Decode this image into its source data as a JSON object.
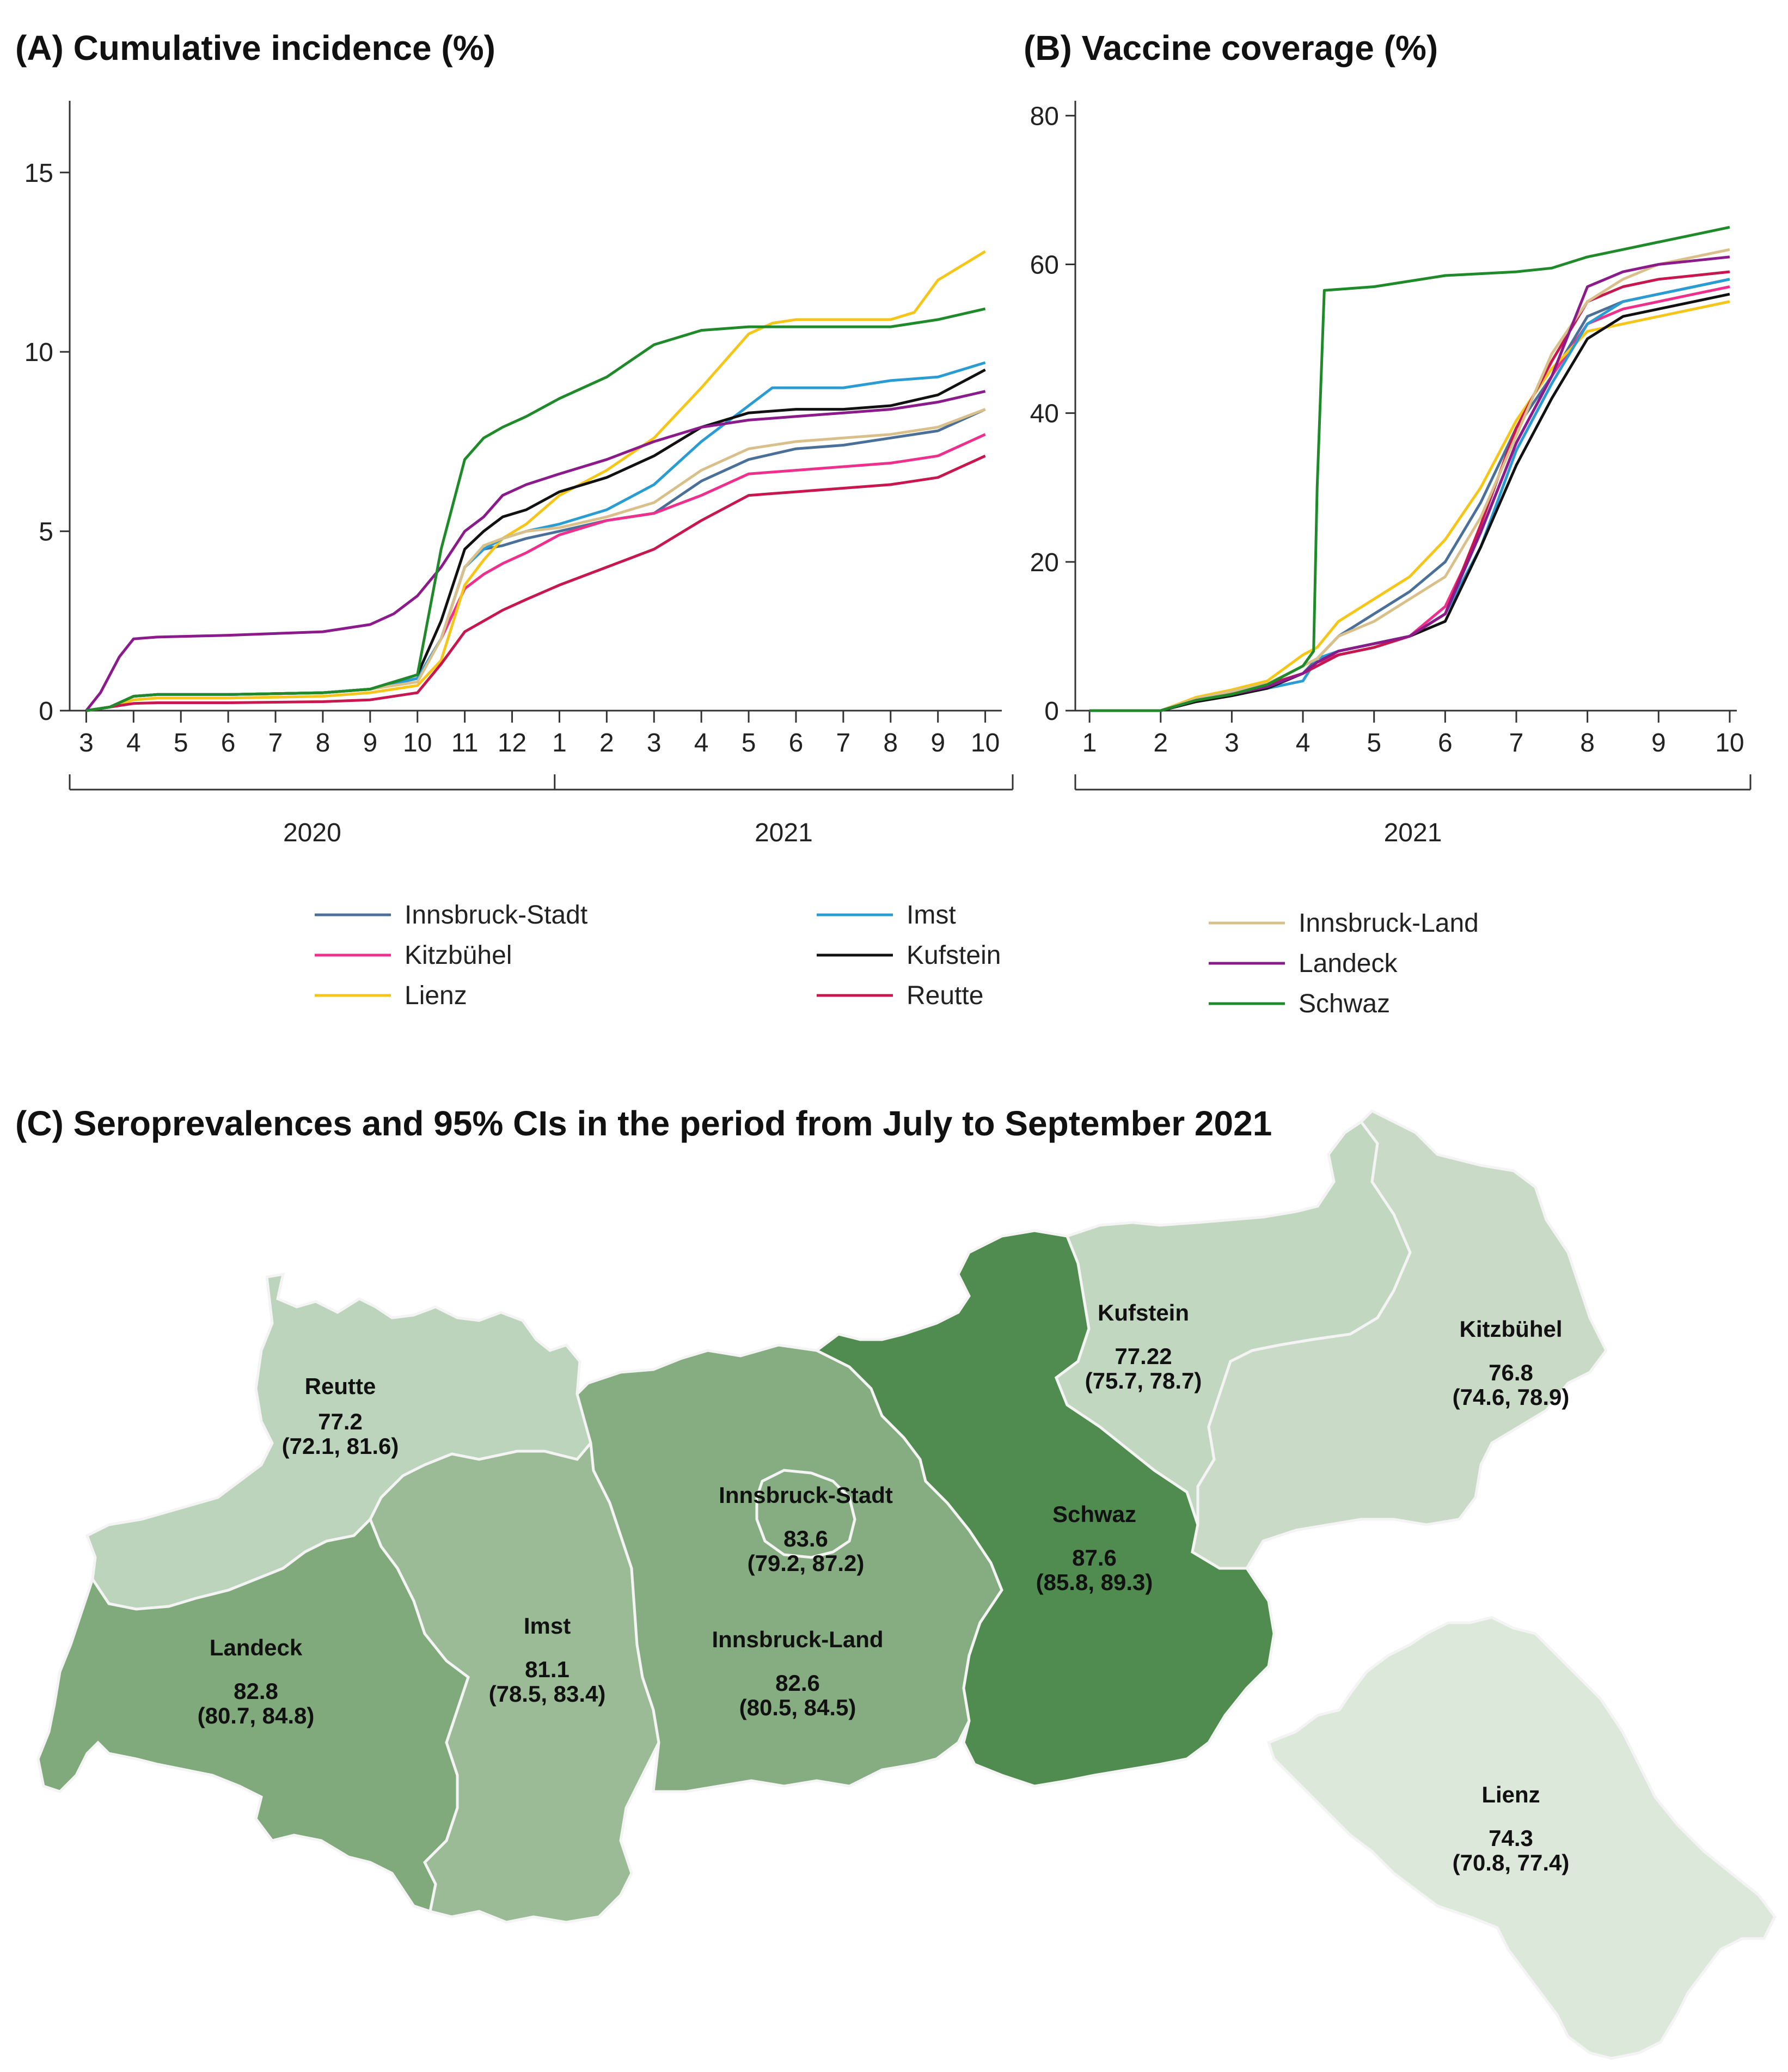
{
  "chart_data": [
    {
      "type": "line",
      "id": "A",
      "title": "(A) Cumulative incidence (%)",
      "ylim": [
        0,
        17
      ],
      "yticks": [
        0,
        5,
        10,
        15
      ],
      "xticks": [
        "3",
        "4",
        "5",
        "6",
        "7",
        "8",
        "9",
        "10",
        "11",
        "12",
        "1",
        "2",
        "3",
        "4",
        "5",
        "6",
        "7",
        "8",
        "9",
        "10"
      ],
      "year_labels": [
        "2020",
        "2021"
      ],
      "x_month_index_range": [
        0,
        19.3
      ],
      "series": [
        {
          "name": "Innsbruck-Stadt",
          "color": "#4a6f99",
          "x": [
            0,
            0.5,
            1,
            1.5,
            3,
            5,
            6,
            7,
            7.5,
            8,
            8.4,
            8.8,
            9.3,
            10,
            11,
            12,
            13,
            14,
            15,
            16,
            17,
            18,
            19
          ],
          "values": [
            0,
            0.1,
            0.4,
            0.45,
            0.45,
            0.5,
            0.6,
            0.9,
            2,
            4,
            4.5,
            4.6,
            4.8,
            5,
            5.3,
            5.5,
            6.4,
            7,
            7.3,
            7.4,
            7.6,
            7.8,
            8.4
          ]
        },
        {
          "name": "Kitzbühel",
          "color": "#ef2f8c",
          "x": [
            0,
            0.5,
            1,
            1.5,
            3,
            5,
            6,
            7,
            7.5,
            8,
            8.4,
            8.8,
            9.3,
            10,
            11,
            12,
            13,
            14,
            15,
            16,
            17,
            18,
            19
          ],
          "values": [
            0,
            0.1,
            0.4,
            0.45,
            0.45,
            0.5,
            0.6,
            0.9,
            2,
            3.4,
            3.8,
            4.1,
            4.4,
            4.9,
            5.3,
            5.5,
            6,
            6.6,
            6.7,
            6.8,
            6.9,
            7.1,
            7.7
          ]
        },
        {
          "name": "Lienz",
          "color": "#f5c518",
          "x": [
            0,
            0.5,
            1,
            1.5,
            3,
            5,
            6,
            7,
            7.5,
            8,
            8.4,
            8.8,
            9.3,
            10,
            11,
            12,
            13,
            14,
            14.5,
            15,
            16,
            17,
            17.5,
            18,
            19
          ],
          "values": [
            0,
            0.1,
            0.3,
            0.35,
            0.35,
            0.4,
            0.5,
            0.7,
            1.4,
            3.5,
            4.2,
            4.8,
            5.2,
            6,
            6.7,
            7.6,
            9,
            10.5,
            10.8,
            10.9,
            10.9,
            10.9,
            11.1,
            12,
            12.8
          ]
        },
        {
          "name": "Imst",
          "color": "#2a9cd4",
          "x": [
            0,
            0.5,
            1,
            1.5,
            3,
            5,
            6,
            7,
            7.5,
            8,
            8.4,
            8.8,
            9.3,
            10,
            11,
            12,
            13,
            14,
            14.5,
            15,
            16,
            17,
            18,
            19
          ],
          "values": [
            0,
            0.1,
            0.4,
            0.45,
            0.45,
            0.5,
            0.6,
            0.9,
            2,
            4,
            4.5,
            4.8,
            5,
            5.2,
            5.6,
            6.3,
            7.5,
            8.5,
            9,
            9,
            9,
            9.2,
            9.3,
            9.7
          ]
        },
        {
          "name": "Kufstein",
          "color": "#111111",
          "x": [
            0,
            0.5,
            1,
            1.5,
            3,
            5,
            6,
            7,
            7.5,
            8,
            8.4,
            8.8,
            9.3,
            10,
            11,
            12,
            13,
            14,
            15,
            16,
            17,
            18,
            19
          ],
          "values": [
            0,
            0.1,
            0.4,
            0.45,
            0.45,
            0.5,
            0.6,
            1,
            2.5,
            4.5,
            5,
            5.4,
            5.6,
            6.1,
            6.5,
            7.1,
            7.9,
            8.3,
            8.4,
            8.4,
            8.5,
            8.8,
            9.5
          ]
        },
        {
          "name": "Reutte",
          "color": "#c8174e",
          "x": [
            0,
            0.5,
            1,
            1.5,
            3,
            5,
            6,
            7,
            7.5,
            8,
            8.4,
            8.8,
            9.3,
            10,
            11,
            12,
            13,
            14,
            15,
            16,
            17,
            18,
            19
          ],
          "values": [
            0,
            0.1,
            0.2,
            0.22,
            0.22,
            0.25,
            0.3,
            0.5,
            1.3,
            2.2,
            2.5,
            2.8,
            3.1,
            3.5,
            4,
            4.5,
            5.3,
            6,
            6.1,
            6.2,
            6.3,
            6.5,
            7.1
          ]
        },
        {
          "name": "Innsbruck-Land",
          "color": "#d9c08a",
          "x": [
            0,
            0.5,
            1,
            1.5,
            3,
            5,
            6,
            7,
            7.5,
            8,
            8.4,
            8.8,
            9.3,
            10,
            11,
            12,
            13,
            14,
            15,
            16,
            17,
            18,
            19
          ],
          "values": [
            0,
            0.1,
            0.4,
            0.45,
            0.45,
            0.5,
            0.6,
            0.8,
            2,
            4,
            4.6,
            4.8,
            5,
            5.1,
            5.4,
            5.8,
            6.7,
            7.3,
            7.5,
            7.6,
            7.7,
            7.9,
            8.4
          ]
        },
        {
          "name": "Landeck",
          "color": "#8b1a8b",
          "x": [
            0,
            0.3,
            0.7,
            1,
            1.5,
            3,
            5,
            6,
            6.5,
            7,
            7.5,
            8,
            8.4,
            8.8,
            9.3,
            10,
            11,
            12,
            13,
            14,
            15,
            16,
            17,
            18,
            19
          ],
          "values": [
            0,
            0.5,
            1.5,
            2,
            2.05,
            2.1,
            2.2,
            2.4,
            2.7,
            3.2,
            4,
            5,
            5.4,
            6,
            6.3,
            6.6,
            7,
            7.5,
            7.9,
            8.1,
            8.2,
            8.3,
            8.4,
            8.6,
            8.9
          ]
        },
        {
          "name": "Schwaz",
          "color": "#1f8a2a",
          "x": [
            0,
            0.5,
            1,
            1.5,
            3,
            5,
            6,
            7,
            7.5,
            8,
            8.4,
            8.8,
            9.3,
            10,
            11,
            12,
            13,
            14,
            15,
            16,
            17,
            18,
            19
          ],
          "values": [
            0,
            0.1,
            0.4,
            0.45,
            0.45,
            0.5,
            0.6,
            1,
            4.5,
            7,
            7.6,
            7.9,
            8.2,
            8.7,
            9.3,
            10.2,
            10.6,
            10.7,
            10.7,
            10.7,
            10.7,
            10.9,
            11.2
          ]
        }
      ]
    },
    {
      "type": "line",
      "id": "B",
      "title": "(B) Vaccine coverage (%)",
      "ylim": [
        0,
        82
      ],
      "yticks": [
        0,
        20,
        40,
        60,
        80
      ],
      "xticks": [
        "1",
        "2",
        "3",
        "4",
        "5",
        "6",
        "7",
        "8",
        "9",
        "10"
      ],
      "year_labels": [
        "2021"
      ],
      "series": [
        {
          "name": "Innsbruck-Stadt",
          "color": "#4a6f99",
          "x": [
            1,
            2,
            2.5,
            3,
            3.5,
            4,
            4.2,
            4.5,
            5,
            5.5,
            6,
            6.5,
            7,
            7.5,
            8,
            8.5,
            9,
            9.5,
            10
          ],
          "values": [
            0,
            0,
            1.5,
            2.5,
            3.5,
            5,
            7,
            10,
            13,
            16,
            20,
            28,
            38,
            45,
            53,
            55,
            56,
            57,
            58
          ]
        },
        {
          "name": "Kitzbühel",
          "color": "#ef2f8c",
          "x": [
            1,
            2,
            2.5,
            3,
            3.5,
            4,
            4.2,
            4.5,
            5,
            5.5,
            6,
            6.5,
            7,
            7.5,
            8,
            8.5,
            9,
            9.5,
            10
          ],
          "values": [
            0,
            0,
            1.5,
            2.5,
            3.5,
            5,
            6.5,
            7.5,
            8.5,
            10,
            14,
            24,
            36,
            45,
            52,
            54,
            55,
            56,
            57
          ]
        },
        {
          "name": "Lienz",
          "color": "#f5c518",
          "x": [
            1,
            2,
            2.5,
            3,
            3.5,
            4,
            4.2,
            4.5,
            5,
            5.5,
            6,
            6.5,
            7,
            7.5,
            8,
            8.5,
            9,
            9.5,
            10
          ],
          "values": [
            0,
            0,
            1.8,
            2.8,
            4,
            7.5,
            8.5,
            12,
            15,
            18,
            23,
            30,
            39,
            46,
            51,
            52,
            53,
            54,
            55
          ]
        },
        {
          "name": "Imst",
          "color": "#2a9cd4",
          "x": [
            1,
            2,
            2.5,
            3,
            3.5,
            4,
            4.2,
            4.5,
            5,
            5.5,
            6,
            6.5,
            7,
            7.5,
            8,
            8.5,
            9,
            9.5,
            10
          ],
          "values": [
            0,
            0,
            1.5,
            2.3,
            3,
            4,
            7,
            8,
            9,
            10,
            13,
            22,
            35,
            44,
            52,
            55,
            56,
            57,
            58
          ]
        },
        {
          "name": "Kufstein",
          "color": "#111111",
          "x": [
            1,
            2,
            2.5,
            3,
            3.5,
            4,
            4.2,
            4.5,
            5,
            5.5,
            6,
            6.5,
            7,
            7.5,
            8,
            8.5,
            9,
            9.5,
            10
          ],
          "values": [
            0,
            0,
            1.2,
            2,
            3,
            5,
            6.5,
            8,
            9,
            10,
            12,
            22,
            33,
            42,
            50,
            53,
            54,
            55,
            56
          ]
        },
        {
          "name": "Reutte",
          "color": "#c8174e",
          "x": [
            1,
            2,
            2.5,
            3,
            3.5,
            4,
            4.2,
            4.5,
            5,
            5.5,
            6,
            6.5,
            7,
            7.5,
            8,
            8.5,
            9,
            9.5,
            10
          ],
          "values": [
            0,
            0,
            1.5,
            2.5,
            3.5,
            5,
            6,
            7.5,
            8.5,
            10,
            13,
            25,
            38,
            47,
            55,
            57,
            58,
            58.5,
            59
          ]
        },
        {
          "name": "Innsbruck-Land",
          "color": "#d9c08a",
          "x": [
            1,
            2,
            2.5,
            3,
            3.5,
            4,
            4.2,
            4.5,
            5,
            5.5,
            6,
            6.5,
            7,
            7.5,
            8,
            8.5,
            9,
            9.5,
            10
          ],
          "values": [
            0,
            0,
            1.6,
            2.6,
            3.6,
            6,
            7,
            10,
            12,
            15,
            18,
            26,
            37,
            48,
            55,
            58,
            60,
            61,
            62
          ]
        },
        {
          "name": "Landeck",
          "color": "#8b1a8b",
          "x": [
            1,
            2,
            2.5,
            3,
            3.5,
            4,
            4.2,
            4.5,
            5,
            5.5,
            6,
            6.5,
            7,
            7.5,
            8,
            8.5,
            9,
            9.5,
            10
          ],
          "values": [
            0,
            0,
            1.4,
            2.2,
            3.2,
            5,
            6.5,
            8,
            9,
            10,
            13,
            24,
            36,
            45,
            57,
            59,
            60,
            60.5,
            61
          ]
        },
        {
          "name": "Schwaz",
          "color": "#1f8a2a",
          "x": [
            1,
            2,
            2.5,
            3,
            3.5,
            4,
            4.15,
            4.2,
            4.3,
            5,
            6,
            7,
            7.5,
            8,
            8.5,
            9,
            9.5,
            10
          ],
          "values": [
            0,
            0,
            1.4,
            2.2,
            3.5,
            6,
            8,
            30,
            56.5,
            57,
            58.5,
            59,
            59.5,
            61,
            62,
            63,
            64,
            65
          ]
        }
      ]
    }
  ],
  "panel_c": {
    "title": "(C) Seroprevalences and 95% CIs in the period from July to September 2021",
    "regions": [
      {
        "name": "Reutte",
        "value": "77.2",
        "ci": "(72.1, 81.6)",
        "fill": "#bcd4bc"
      },
      {
        "name": "Imst",
        "value": "81.1",
        "ci": "(78.5, 83.4)",
        "fill": "#9bbb97"
      },
      {
        "name": "Landeck",
        "value": "82.8",
        "ci": "(80.7, 84.8)",
        "fill": "#80a97c"
      },
      {
        "name": "Innsbruck-Land",
        "value": "82.6",
        "ci": "(80.5, 84.5)",
        "fill": "#86ad81"
      },
      {
        "name": "Innsbruck-Stadt",
        "value": "83.6",
        "ci": "(79.2, 87.2)",
        "fill": "#86ad81"
      },
      {
        "name": "Schwaz",
        "value": "87.6",
        "ci": "(85.8, 89.3)",
        "fill": "#508c50"
      },
      {
        "name": "Kufstein",
        "value": "77.22",
        "ci": "(75.7, 78.7)",
        "fill": "#c2d7c0"
      },
      {
        "name": "Kitzbühel",
        "value": "76.8",
        "ci": "(74.6, 78.9)",
        "fill": "#c9dbc6"
      },
      {
        "name": "Lienz",
        "value": "74.3",
        "ci": "(70.8, 77.4)",
        "fill": "#dce9da"
      }
    ]
  }
}
